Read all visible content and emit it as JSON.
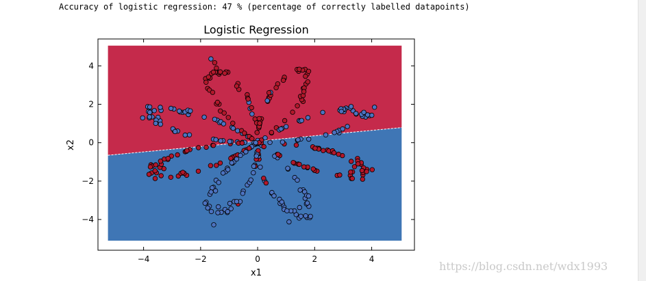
{
  "output_text": "Accuracy of logistic regression: 47 % (percentage of correctly labelled datapoints)",
  "watermark": "https://blog.csdn.net/wdx1993",
  "colors": {
    "region_red": "#c52a4b",
    "region_blue": "#3f76b5",
    "point_red": "#b2182b",
    "point_blue": "#4c72c0"
  },
  "chart_data": {
    "type": "scatter",
    "title": "Logistic Regression",
    "xlabel": "x1",
    "ylabel": "x2",
    "xlim": [
      -5.6,
      5.5
    ],
    "ylim": [
      -5.6,
      5.4
    ],
    "xticks": [
      -4,
      -2,
      0,
      2,
      4
    ],
    "yticks": [
      -4,
      -2,
      0,
      2,
      4
    ],
    "xtick_labels": [
      "−4",
      "−2",
      "0",
      "2",
      "4"
    ],
    "ytick_labels": [
      "−4",
      "−2",
      "0",
      "2",
      "4"
    ],
    "grid": false,
    "legend": "none",
    "contour_extent": {
      "x": [
        -5.25,
        5.05
      ],
      "y": [
        -5.1,
        5.05
      ]
    },
    "decision_boundary": {
      "slope": 0.14,
      "intercept": 0.08
    },
    "classes": [
      "red",
      "blue"
    ],
    "flower_petals": 8,
    "flower_max_radius": 4.0,
    "points_per_class": 200
  }
}
